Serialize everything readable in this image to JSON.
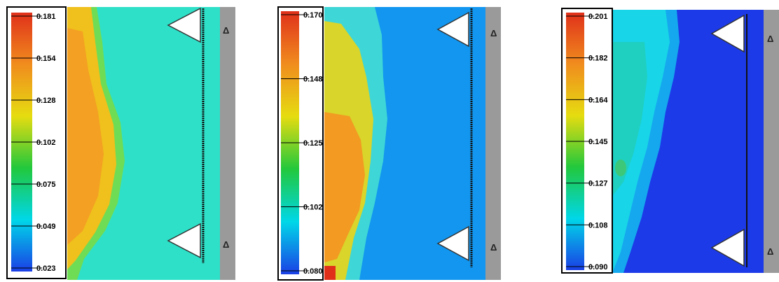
{
  "chart_data": [
    {
      "type": "heatmap",
      "colormap": [
        "#1a3fe6",
        "#00d7e8",
        "#22c83c",
        "#e6dc10",
        "#f08c1e",
        "#e0301a"
      ],
      "colorbar": {
        "min": 0.023,
        "max": 0.181,
        "tick_labels": [
          "0.181",
          "0.154",
          "0.128",
          "0.102",
          "0.075",
          "0.049",
          "0.023"
        ]
      },
      "field_color": "#2ee0c8",
      "plume": {
        "color": "#f0c01c",
        "core_color": "#f3a023",
        "low_color": "#6fdc55"
      },
      "markers": [
        "Δ",
        "Δ"
      ]
    },
    {
      "type": "heatmap",
      "colormap": [
        "#1a3fe6",
        "#00d7e8",
        "#22c83c",
        "#e6dc10",
        "#f08c1e",
        "#e0301a"
      ],
      "colorbar": {
        "min": 0.08,
        "max": 0.17,
        "tick_labels": [
          "0.170",
          "0.148",
          "0.125",
          "0.102",
          "0.080"
        ]
      },
      "field_color": "#1296ef",
      "plume": {
        "color": "#d9d52a",
        "core_color": "#f29a22",
        "low_color": "#3ed6d6"
      },
      "markers": [
        "Δ",
        "Δ"
      ]
    },
    {
      "type": "heatmap",
      "colormap": [
        "#1a3fe6",
        "#00d7e8",
        "#22c83c",
        "#e6dc10",
        "#f08c1e",
        "#e0301a"
      ],
      "colorbar": {
        "min": 0.09,
        "max": 0.201,
        "tick_labels": [
          "0.201",
          "0.182",
          "0.164",
          "0.145",
          "0.127",
          "0.108",
          "0.090"
        ]
      },
      "field_color": "#1c3ae8",
      "plume": {
        "color": "#18d5e8",
        "core_color": "#1fd0c0",
        "low_color": "#15a8ee"
      },
      "markers": [
        "Δ",
        "Δ"
      ]
    }
  ]
}
